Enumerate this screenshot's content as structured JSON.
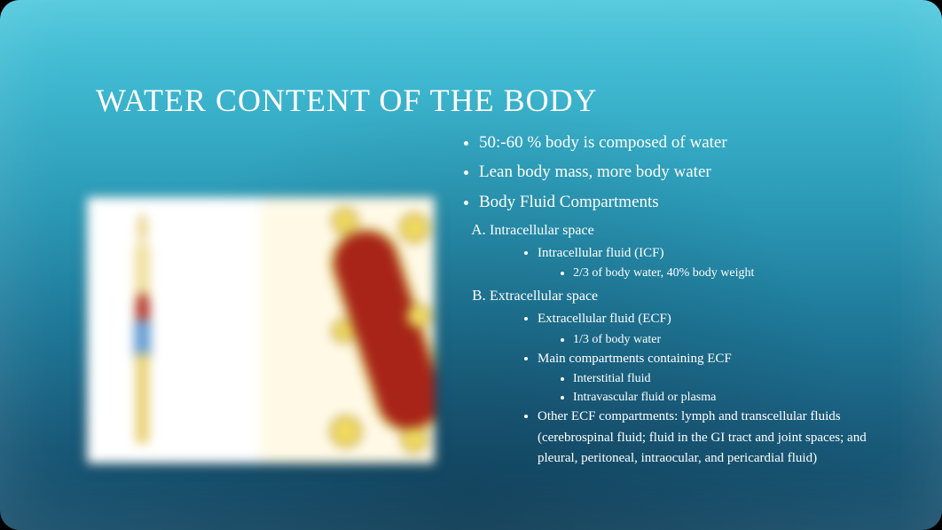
{
  "slide": {
    "title": "WATER CONTENT OF THE BODY",
    "background_gradient": [
      "#4fc8dd",
      "#3eb8d0",
      "#2a98b5",
      "#1f7a9a",
      "#1a5d7d",
      "#134a66"
    ],
    "title_fontsize": 36,
    "body_fontsize": 19,
    "text_color": "#ffffff"
  },
  "bullets": {
    "b1": "50:-60 % body is composed of water",
    "b2": "Lean body mass, more body water",
    "b3": "Body Fluid Compartments"
  },
  "compartments": {
    "A": {
      "label": "Intracellular space",
      "fluid": "Intracellular fluid (ICF)",
      "detail": "2/3 of body water, 40% body weight"
    },
    "B": {
      "label": "Extracellular space",
      "fluid": "Extracellular fluid (ECF)",
      "fluid_detail": "1/3 of body water",
      "main_label": "Main compartments containing ECF",
      "main_items": {
        "i1": "Interstitial fluid",
        "i2": "Intravascular fluid or plasma"
      },
      "other": "Other ECF compartments: lymph and transcellular fluids (cerebrospinal fluid; fluid in the GI tract and joint spaces; and pleural, peritoneal, intraocular, and pericardial fluid)"
    }
  },
  "figure": {
    "description": "body-fluid-compartments-diagram",
    "colors": {
      "panel_bg": "#fdfdfb",
      "skin": "#e8d28a",
      "torso": "#f0e0a0",
      "abdomen": "#b23a2e",
      "shorts": "#6a9fd4",
      "legs": "#e8d070",
      "vessel": "#a82418",
      "vessel_border": "#d8c060",
      "cell_fill": "#f0da60",
      "cell_border": "#a07a20"
    }
  }
}
